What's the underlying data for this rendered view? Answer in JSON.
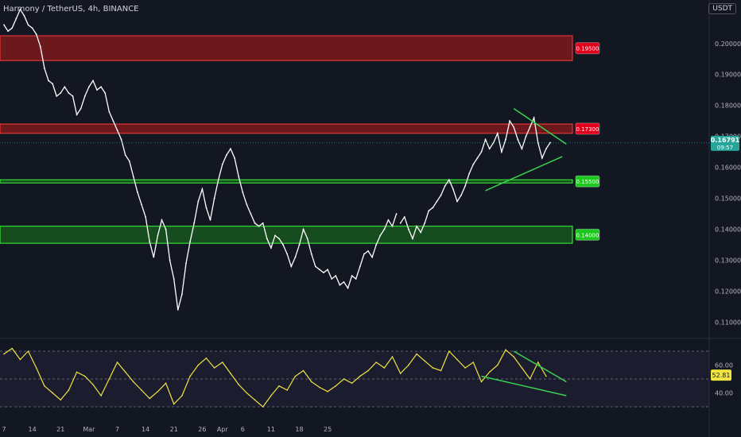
{
  "header": {
    "title": "Harmony / TetherUS, 4h, BINANCE",
    "currency": "USDT"
  },
  "colors": {
    "background": "#131722",
    "price_line": "#ffffff",
    "rsi_line": "#f0e442",
    "trendline": "#39d353",
    "resistance_zone": "#b71c1c",
    "support_zone": "#1b7a1b",
    "current_price_tag": "#26a69a",
    "rsi_tag": "#f0e442"
  },
  "chart_data": [
    {
      "type": "line",
      "name": "price",
      "ylim": [
        0.105,
        0.212
      ],
      "yticks": [
        0.11,
        0.12,
        0.13,
        0.14,
        0.15,
        0.16,
        0.17,
        0.18,
        0.19,
        0.2
      ],
      "ytick_labels": [
        "0.11000",
        "0.12000",
        "0.13000",
        "0.14000",
        "0.15000",
        "0.16000",
        "0.17000",
        "0.18000",
        "0.19000",
        "0.20000"
      ],
      "x_range": [
        0,
        135
      ],
      "xticks": [
        0,
        7,
        14,
        21,
        28,
        35,
        42,
        49,
        54,
        59,
        66,
        73,
        80,
        87
      ],
      "xtick_labels": [
        "7",
        "14",
        "21",
        "Mar",
        "7",
        "14",
        "21",
        "26",
        "Apr",
        "6",
        "11",
        "18",
        "25",
        ""
      ],
      "series": [
        {
          "x": [
            0,
            1,
            2,
            3,
            4,
            5,
            6,
            7,
            8,
            9,
            10,
            11,
            12,
            13,
            14,
            15,
            16,
            17,
            18,
            19,
            20,
            21,
            22,
            23,
            24,
            25,
            26,
            27,
            28,
            29,
            30,
            31,
            32,
            33,
            34,
            35,
            36,
            37,
            38,
            39,
            40,
            41,
            42,
            43,
            44,
            45,
            46,
            47,
            48,
            49,
            50,
            51,
            52,
            53,
            54,
            55,
            56,
            57,
            58,
            59,
            60,
            61,
            62,
            63,
            64,
            65,
            66,
            67,
            68,
            69,
            70,
            71,
            72,
            73,
            74,
            75,
            76,
            77,
            78,
            79,
            80,
            81,
            82,
            83,
            84,
            85,
            86,
            87,
            88,
            89,
            90,
            91,
            92,
            93,
            94,
            95,
            96,
            97
          ],
          "values": [
            0.206,
            0.204,
            0.205,
            0.208,
            0.211,
            0.209,
            0.206,
            0.205,
            0.203,
            0.199,
            0.192,
            0.188,
            0.187,
            0.183,
            0.184,
            0.186,
            0.184,
            0.183,
            0.177,
            0.179,
            0.183,
            0.186,
            0.188,
            0.185,
            0.186,
            0.184,
            0.178,
            0.175,
            0.172,
            0.169,
            0.164,
            0.162,
            0.157,
            0.152,
            0.148,
            0.144,
            0.136,
            0.131,
            0.138,
            0.143,
            0.14,
            0.13,
            0.124,
            0.114,
            0.119,
            0.129,
            0.136,
            0.142,
            0.149,
            0.153,
            0.147,
            0.143,
            0.15,
            0.156,
            0.161,
            0.164,
            0.166,
            0.163,
            0.157,
            0.152,
            0.148,
            0.145,
            0.142,
            0.141,
            0.142,
            0.137,
            0.134,
            0.138,
            0.137,
            0.135,
            0.132,
            0.128,
            0.131,
            0.135,
            0.14,
            0.137,
            0.132,
            0.128,
            0.127,
            0.126,
            0.127,
            0.124,
            0.125,
            0.122,
            0.123,
            0.121,
            0.125,
            0.124,
            0.128,
            0.132,
            0.133,
            0.131,
            0.135,
            0.138,
            0.14,
            0.143,
            0.141,
            0.145
          ]
        },
        {
          "x": [
            98,
            99,
            100,
            101,
            102,
            103,
            104,
            105,
            106,
            107,
            108,
            109,
            110,
            111,
            112,
            113,
            114,
            115,
            116,
            117,
            118,
            119,
            120,
            121,
            122,
            123,
            124,
            125,
            126,
            127,
            128,
            129,
            130,
            131,
            132,
            133,
            134,
            135
          ],
          "values": [
            0.142,
            0.144,
            0.14,
            0.137,
            0.141,
            0.139,
            0.142,
            0.146,
            0.147,
            0.149,
            0.151,
            0.154,
            0.156,
            0.153,
            0.149,
            0.151,
            0.154,
            0.158,
            0.161,
            0.163,
            0.165,
            0.169,
            0.166,
            0.168,
            0.171,
            0.165,
            0.169,
            0.175,
            0.173,
            0.169,
            0.166,
            0.17,
            0.173,
            0.176,
            0.168,
            0.163,
            0.166,
            0.168
          ]
        }
      ],
      "zones": [
        {
          "kind": "resistance",
          "y_low": 0.1945,
          "y_high": 0.2025,
          "label": "0.19500"
        },
        {
          "kind": "resistance",
          "y_low": 0.171,
          "y_high": 0.174,
          "label": "0.17300"
        },
        {
          "kind": "support",
          "y_low": 0.155,
          "y_high": 0.156,
          "label": "0.15500"
        },
        {
          "kind": "support",
          "y_low": 0.1355,
          "y_high": 0.141,
          "label": "0.14000"
        }
      ],
      "trendlines": [
        {
          "x": [
            126,
            139
          ],
          "y": [
            0.179,
            0.1675
          ]
        },
        {
          "x": [
            119,
            138
          ],
          "y": [
            0.1525,
            0.1635
          ]
        }
      ],
      "current_price": {
        "value": 0.16791,
        "label": "0.16791",
        "countdown": "09:57"
      }
    },
    {
      "type": "line",
      "name": "rsi",
      "ylim": [
        22,
        78
      ],
      "yticks": [
        40,
        60
      ],
      "ytick_labels": [
        "40.00",
        "60.00"
      ],
      "bands": [
        30,
        50,
        70
      ],
      "x": [
        0,
        2,
        4,
        6,
        8,
        10,
        12,
        14,
        16,
        18,
        20,
        22,
        24,
        26,
        28,
        30,
        32,
        34,
        36,
        38,
        40,
        42,
        44,
        46,
        48,
        50,
        52,
        54,
        56,
        58,
        60,
        62,
        64,
        66,
        68,
        70,
        72,
        74,
        76,
        78,
        80,
        82,
        84,
        86,
        88,
        90,
        92,
        94,
        96,
        98,
        100,
        102,
        104,
        106,
        108,
        110,
        112,
        114,
        116,
        118,
        120,
        122,
        124,
        126,
        128,
        130,
        132,
        134
      ],
      "values": [
        68,
        72,
        64,
        70,
        58,
        45,
        40,
        35,
        42,
        55,
        52,
        46,
        38,
        50,
        62,
        55,
        48,
        42,
        36,
        41,
        47,
        32,
        38,
        52,
        60,
        65,
        58,
        62,
        54,
        46,
        40,
        35,
        30,
        38,
        45,
        42,
        52,
        56,
        48,
        44,
        41,
        45,
        50,
        47,
        52,
        56,
        62,
        58,
        66,
        54,
        60,
        68,
        63,
        58,
        56,
        70,
        64,
        58,
        62,
        48,
        55,
        60,
        71,
        66,
        58,
        50,
        62,
        52
      ],
      "current": {
        "value": 52.81,
        "label": "52.81"
      },
      "trendlines": [
        {
          "x": [
            126,
            139
          ],
          "y": [
            70,
            48
          ]
        },
        {
          "x": [
            118,
            139
          ],
          "y": [
            52,
            38
          ]
        }
      ]
    }
  ]
}
